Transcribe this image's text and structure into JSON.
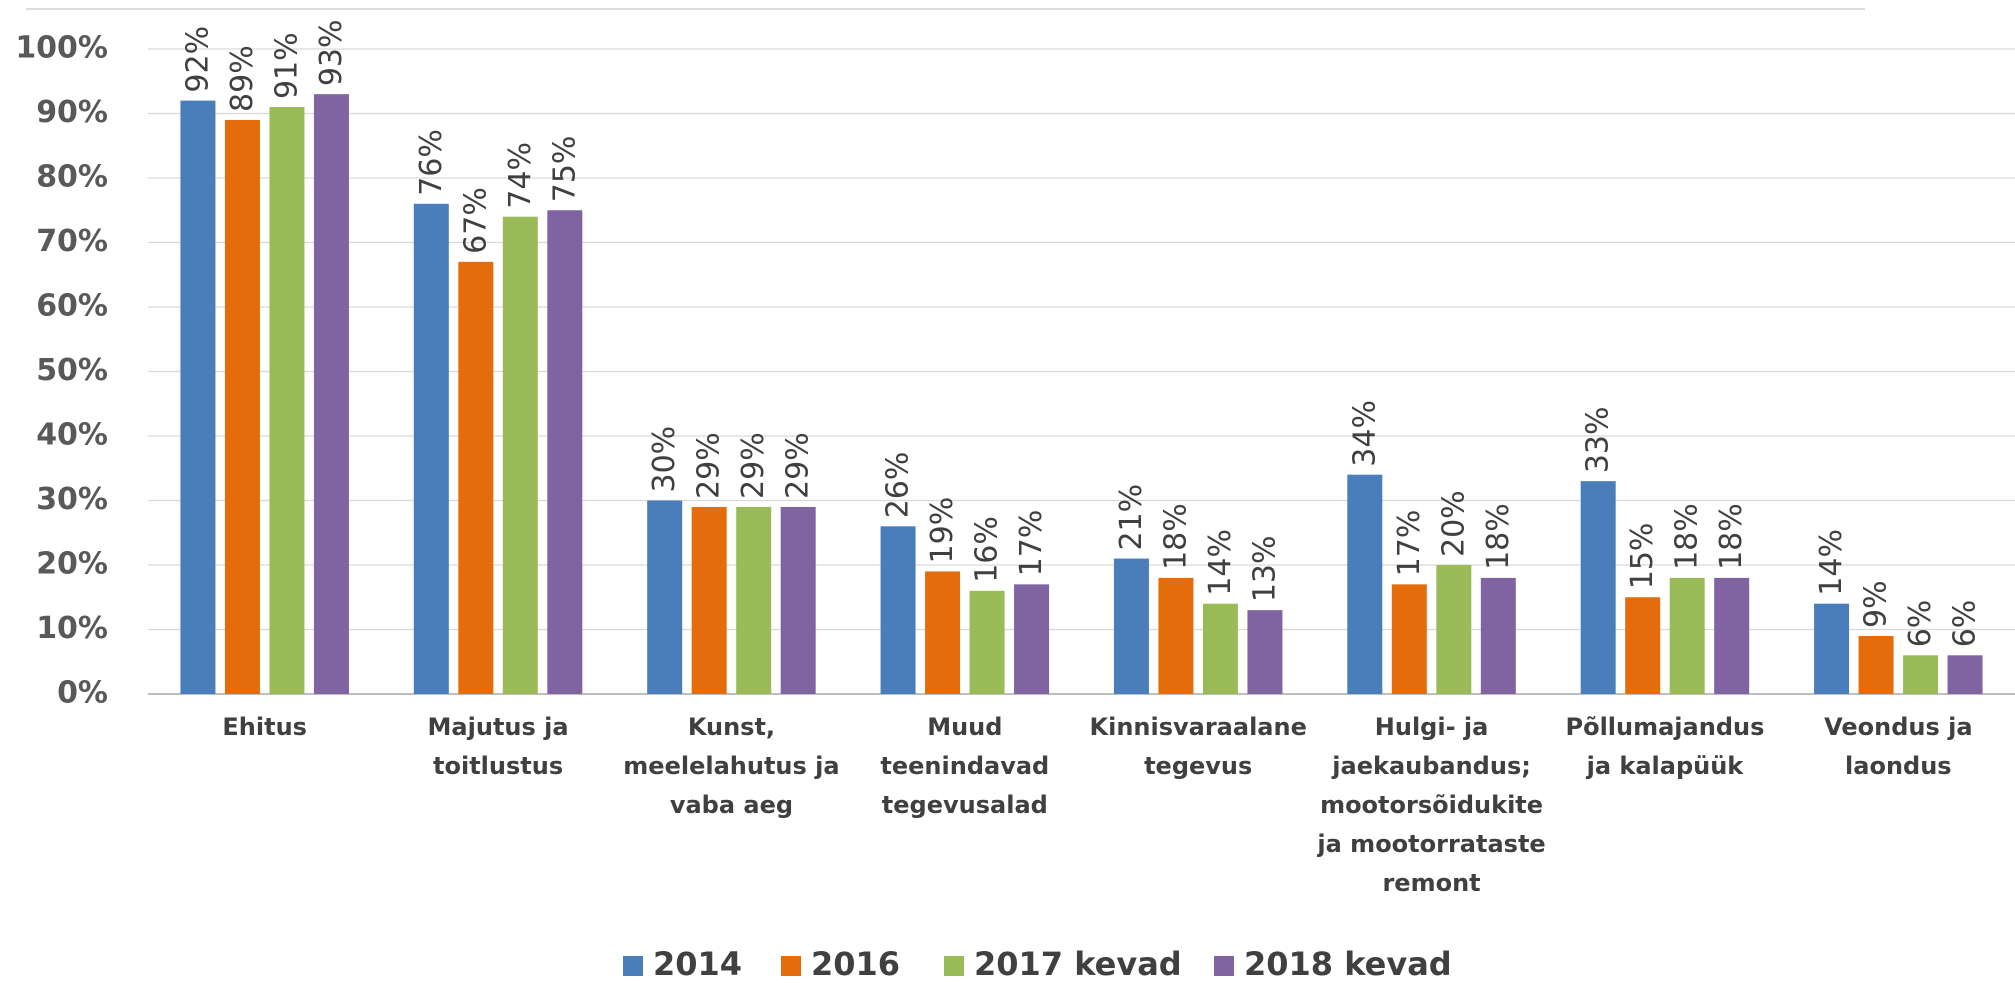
{
  "chart_data": {
    "type": "bar",
    "categories": [
      "Ehitus",
      "Majutus ja toitlustus",
      "Kunst, meelelahutus ja vaba aeg",
      "Muud teenindavad tegevusalad",
      "Kinnisvaraalane tegevus",
      "Hulgi- ja jaekaubandus; mootorsõidukite ja mootorrataste remont",
      "Põllumajandus ja kalapüük",
      "Veondus ja laondus"
    ],
    "series": [
      {
        "name": "2014",
        "color": "#4a7ebb",
        "values": [
          92,
          76,
          30,
          26,
          21,
          34,
          33,
          14
        ],
        "value_labels": [
          "92%",
          "76%",
          "30%",
          "26%",
          "21%",
          "34%",
          "33%",
          "14%"
        ]
      },
      {
        "name": "2016",
        "color": "#e46c0a",
        "values": [
          89,
          67,
          29,
          19,
          18,
          17,
          15,
          9
        ],
        "value_labels": [
          "89%",
          "67%",
          "29%",
          "19%",
          "18%",
          "17%",
          "15%",
          "9%"
        ]
      },
      {
        "name": "2017 kevad",
        "color": "#9bbb59",
        "values": [
          91,
          74,
          29,
          16,
          14,
          20,
          18,
          6
        ],
        "value_labels": [
          "91%",
          "74%",
          "29%",
          "16%",
          "14%",
          "20%",
          "18%",
          "6%"
        ]
      },
      {
        "name": "2018 kevad",
        "color": "#8064a2",
        "values": [
          93,
          75,
          29,
          17,
          13,
          18,
          18,
          6
        ],
        "value_labels": [
          "93%",
          "75%",
          "29%",
          "17%",
          "13%",
          "18%",
          "18%",
          "6%"
        ]
      }
    ],
    "ylim": [
      0,
      100
    ],
    "yticks": [
      {
        "value": 0,
        "label": "0%"
      },
      {
        "value": 10,
        "label": "10%"
      },
      {
        "value": 20,
        "label": "20%"
      },
      {
        "value": 30,
        "label": "30%"
      },
      {
        "value": 40,
        "label": "40%"
      },
      {
        "value": 50,
        "label": "50%"
      },
      {
        "value": 60,
        "label": "60%"
      },
      {
        "value": 70,
        "label": "70%"
      },
      {
        "value": 80,
        "label": "80%"
      },
      {
        "value": 90,
        "label": "90%"
      },
      {
        "value": 100,
        "label": "100%"
      }
    ],
    "grid": true,
    "legend": "bottom"
  }
}
